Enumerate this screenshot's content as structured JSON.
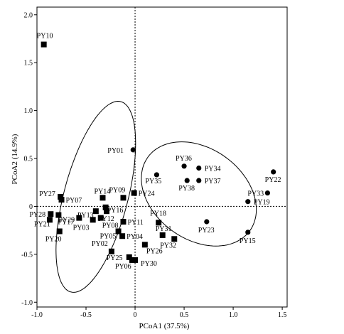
{
  "chart_data": {
    "type": "scatter",
    "title": "",
    "xlabel": "PCoA1 (37.5%)",
    "ylabel": "PCoA2 (14.9%)",
    "xlim": [
      -1.0,
      1.55
    ],
    "ylim": [
      -1.05,
      2.08
    ],
    "xticks": [
      -1.0,
      -0.5,
      0.0,
      0.5,
      1.0,
      1.5
    ],
    "yticks": [
      -1.0,
      -0.5,
      0.0,
      0.5,
      1.0,
      1.5,
      2.0
    ],
    "xtick_labels": [
      "-1.0",
      "-0.5",
      "0",
      "0.5",
      "1.0",
      "1.5"
    ],
    "ytick_labels": [
      "-1.0",
      "-0.5",
      "0",
      "0.5",
      "1.0",
      "1.5",
      "2.0"
    ],
    "grid": false,
    "reference_lines": [
      {
        "axis": "x",
        "value": 0,
        "style": "dotted"
      },
      {
        "axis": "y",
        "value": 0,
        "style": "dotted"
      }
    ],
    "series": [
      {
        "marker": "square",
        "points": [
          {
            "label": "PY10",
            "x": -0.93,
            "y": 1.69
          },
          {
            "label": "PY27",
            "x": -0.76,
            "y": 0.1
          },
          {
            "label": "PY07",
            "x": -0.75,
            "y": 0.07
          },
          {
            "label": "PY28",
            "x": -0.86,
            "y": -0.08
          },
          {
            "label": "PY29",
            "x": -0.78,
            "y": -0.09
          },
          {
            "label": "PY21",
            "x": -0.87,
            "y": -0.14
          },
          {
            "label": "PY17",
            "x": -0.57,
            "y": -0.12
          },
          {
            "label": "PY20",
            "x": -0.77,
            "y": -0.26
          },
          {
            "label": "PY03",
            "x": -0.43,
            "y": -0.14
          },
          {
            "label": "PY13",
            "x": -0.4,
            "y": -0.05
          },
          {
            "label": "PY14",
            "x": -0.33,
            "y": 0.09
          },
          {
            "label": "PY16",
            "x": -0.3,
            "y": -0.01
          },
          {
            "label": "PY08",
            "x": -0.35,
            "y": -0.12
          },
          {
            "label": "PY12",
            "x": -0.29,
            "y": -0.05
          },
          {
            "label": "PY09",
            "x": -0.12,
            "y": 0.09
          },
          {
            "label": "PY24",
            "x": -0.01,
            "y": 0.14
          },
          {
            "label": "PY11",
            "x": -0.12,
            "y": -0.16
          },
          {
            "label": "PY05",
            "x": -0.17,
            "y": -0.26
          },
          {
            "label": "PY04",
            "x": -0.13,
            "y": -0.31
          },
          {
            "label": "PY02",
            "x": -0.24,
            "y": -0.47
          },
          {
            "label": "PY25",
            "x": -0.06,
            "y": -0.53
          },
          {
            "label": "PY06",
            "x": -0.03,
            "y": -0.56
          },
          {
            "label": "PY26",
            "x": 0.1,
            "y": -0.4
          },
          {
            "label": "PY30",
            "x": 0.0,
            "y": -0.56
          },
          {
            "label": "PY18",
            "x": 0.24,
            "y": -0.17
          },
          {
            "label": "PY31",
            "x": 0.28,
            "y": -0.3
          },
          {
            "label": "PY32",
            "x": 0.4,
            "y": -0.34
          }
        ]
      },
      {
        "marker": "circle",
        "points": [
          {
            "label": "PY01",
            "x": -0.02,
            "y": 0.59
          },
          {
            "label": "PY35",
            "x": 0.22,
            "y": 0.33
          },
          {
            "label": "PY36",
            "x": 0.5,
            "y": 0.42
          },
          {
            "label": "PY34",
            "x": 0.65,
            "y": 0.4
          },
          {
            "label": "PY38",
            "x": 0.53,
            "y": 0.27
          },
          {
            "label": "PY37",
            "x": 0.65,
            "y": 0.27
          },
          {
            "label": "PY23",
            "x": 0.73,
            "y": -0.16
          },
          {
            "label": "PY33",
            "x": 1.35,
            "y": 0.14
          },
          {
            "label": "PY19",
            "x": 1.15,
            "y": 0.05
          },
          {
            "label": "PY22",
            "x": 1.41,
            "y": 0.36
          },
          {
            "label": "PY15",
            "x": 1.15,
            "y": -0.27
          }
        ]
      }
    ],
    "ellipses": [
      {
        "cx": -0.4,
        "cy": 0.1,
        "rx": 1.05,
        "ry": 0.42,
        "angle_deg": 70
      },
      {
        "cx": 0.65,
        "cy": 0.13,
        "rx": 0.8,
        "ry": 0.5,
        "angle_deg": -20
      }
    ]
  }
}
